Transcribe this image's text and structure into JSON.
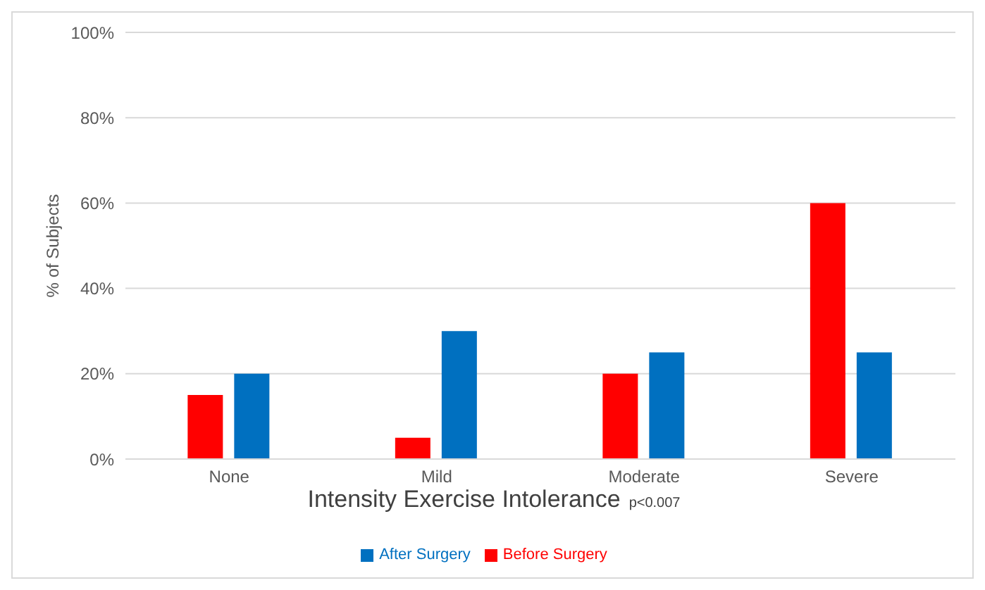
{
  "chart_data": {
    "type": "bar",
    "xlabel": "Intensity Exercise Intolerance",
    "ylabel": "% of Subjects",
    "annotations": [
      "p<0.007"
    ],
    "categories": [
      "None",
      "Mild",
      "Moderate",
      "Severe"
    ],
    "series": [
      {
        "name": "Before Surgery",
        "color": "#ff0000",
        "values": [
          15,
          5,
          20,
          60
        ]
      },
      {
        "name": "After Surgery",
        "color": "#0070c0",
        "values": [
          20,
          30,
          25,
          25
        ]
      }
    ],
    "ylim": [
      0,
      100
    ],
    "yticks": [
      {
        "value": 0,
        "label": "0%"
      },
      {
        "value": 20,
        "label": "20%"
      },
      {
        "value": 40,
        "label": "40%"
      },
      {
        "value": 60,
        "label": "60%"
      },
      {
        "value": 80,
        "label": "80%"
      },
      {
        "value": 100,
        "label": "100%"
      }
    ],
    "grid": "y",
    "legend": "bottom"
  }
}
